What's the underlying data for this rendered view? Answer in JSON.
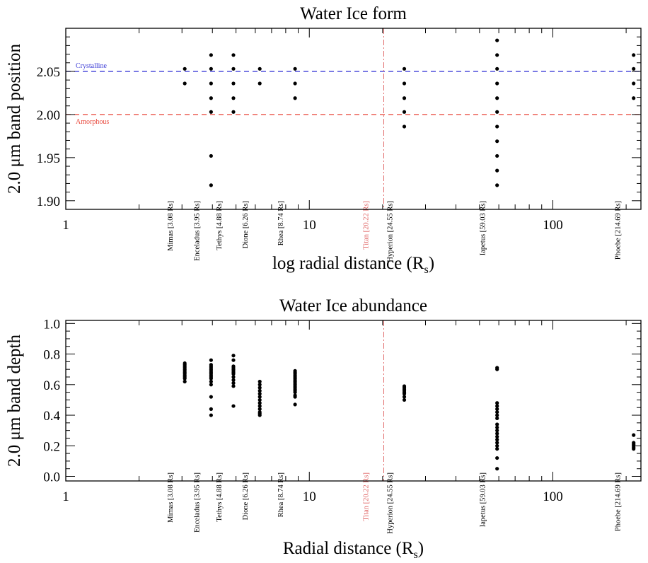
{
  "chart_data": [
    {
      "type": "scatter",
      "title": "Water Ice form",
      "ylabel": "2.0 μm band position",
      "xlabel": "log radial distance (Rs)",
      "x_scale": "log",
      "xlim": [
        1,
        230
      ],
      "ylim": [
        1.89,
        2.1
      ],
      "x_tick_labels": [
        "1",
        "10",
        "100"
      ],
      "y_tick_labels": [
        "1.90",
        "1.95",
        "2.00",
        "2.05"
      ],
      "reference_lines": [
        {
          "name": "Crystalline",
          "y": 2.05,
          "color": "#3b3bd6"
        },
        {
          "name": "Amorphous",
          "y": 2.0,
          "color": "#e8463a"
        }
      ],
      "titan": {
        "label": "Titan [20.22 Rs]",
        "x": 20.22,
        "color": "#e06666"
      },
      "moons": [
        {
          "label": "Mimas [3.08 Rs]",
          "x": 3.08,
          "y": [
            2.036,
            2.053
          ]
        },
        {
          "label": "Enceladus [3.95 Rs]",
          "x": 3.95,
          "y": [
            1.918,
            1.952,
            2.003,
            2.019,
            2.036,
            2.053,
            2.069
          ]
        },
        {
          "label": "Tethys [4.88 Rs]",
          "x": 4.88,
          "y": [
            2.003,
            2.019,
            2.036,
            2.053,
            2.069
          ]
        },
        {
          "label": "Dione [6.26 Rs]",
          "x": 6.26,
          "y": [
            2.036,
            2.053
          ]
        },
        {
          "label": "Rhea [8.74 Rs]",
          "x": 8.74,
          "y": [
            2.019,
            2.036,
            2.053
          ]
        },
        {
          "label": "Hyperion [24.55 Rs]",
          "x": 24.55,
          "y": [
            1.986,
            2.003,
            2.019,
            2.036,
            2.053
          ]
        },
        {
          "label": "Iapetus [59.03 Rs]",
          "x": 59.03,
          "y": [
            1.918,
            1.935,
            1.952,
            1.969,
            1.986,
            2.003,
            2.019,
            2.036,
            2.053,
            2.069,
            2.086
          ]
        },
        {
          "label": "Phoebe [214.69 Rs]",
          "x": 214.69,
          "y": [
            2.019,
            2.036,
            2.053,
            2.069
          ]
        }
      ]
    },
    {
      "type": "scatter",
      "title": "Water Ice abundance",
      "ylabel": "2.0 μm band depth",
      "xlabel": "Radial distance (Rs)",
      "x_scale": "log",
      "xlim": [
        1,
        230
      ],
      "ylim": [
        -0.03,
        1.02
      ],
      "x_tick_labels": [
        "1",
        "10",
        "100"
      ],
      "y_tick_labels": [
        "0.0",
        "0.2",
        "0.4",
        "0.6",
        "0.8",
        "1.0"
      ],
      "titan": {
        "label": "Titan [20.22 Rs]",
        "x": 20.22,
        "color": "#e06666"
      },
      "moons": [
        {
          "label": "Mimas [3.08 Rs]",
          "x": 3.08,
          "y": [
            0.62,
            0.64,
            0.65,
            0.66,
            0.67,
            0.68,
            0.69,
            0.7,
            0.71,
            0.72,
            0.73,
            0.74
          ]
        },
        {
          "label": "Enceladus [3.95 Rs]",
          "x": 3.95,
          "y": [
            0.4,
            0.44,
            0.52,
            0.6,
            0.62,
            0.64,
            0.65,
            0.66,
            0.67,
            0.68,
            0.69,
            0.7,
            0.71,
            0.72,
            0.73,
            0.76
          ]
        },
        {
          "label": "Tethys [4.88 Rs]",
          "x": 4.88,
          "y": [
            0.46,
            0.59,
            0.61,
            0.63,
            0.65,
            0.67,
            0.68,
            0.69,
            0.7,
            0.71,
            0.72,
            0.76,
            0.79
          ]
        },
        {
          "label": "Dione [6.26 Rs]",
          "x": 6.26,
          "y": [
            0.4,
            0.41,
            0.42,
            0.44,
            0.46,
            0.48,
            0.5,
            0.52,
            0.54,
            0.56,
            0.58,
            0.6,
            0.62
          ]
        },
        {
          "label": "Rhea [8.74 Rs]",
          "x": 8.74,
          "y": [
            0.47,
            0.52,
            0.53,
            0.55,
            0.56,
            0.57,
            0.58,
            0.59,
            0.6,
            0.61,
            0.62,
            0.63,
            0.64,
            0.65,
            0.66,
            0.67,
            0.68,
            0.69
          ]
        },
        {
          "label": "Hyperion [24.55 Rs]",
          "x": 24.55,
          "y": [
            0.5,
            0.52,
            0.54,
            0.55,
            0.56,
            0.57,
            0.58,
            0.59
          ]
        },
        {
          "label": "Iapetus [59.03 Rs]",
          "x": 59.03,
          "y": [
            0.05,
            0.12,
            0.18,
            0.2,
            0.22,
            0.24,
            0.26,
            0.28,
            0.3,
            0.32,
            0.34,
            0.38,
            0.4,
            0.42,
            0.44,
            0.46,
            0.48,
            0.7,
            0.71
          ]
        },
        {
          "label": "Phoebe [214.69 Rs]",
          "x": 214.69,
          "y": [
            0.18,
            0.19,
            0.2,
            0.21,
            0.22,
            0.27
          ]
        }
      ]
    }
  ]
}
